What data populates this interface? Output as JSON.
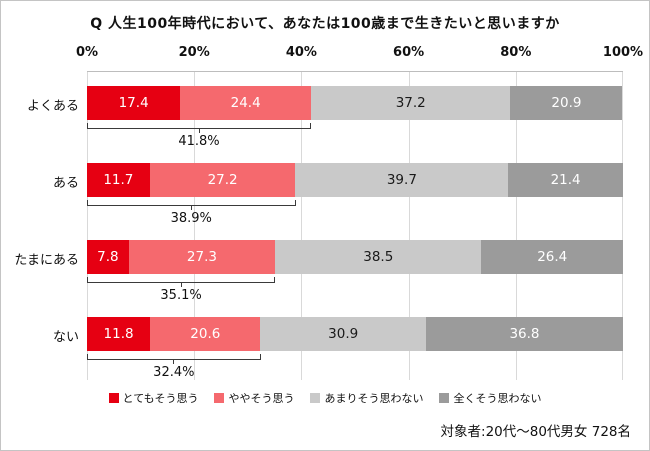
{
  "title": "Q 人生100年時代において、あなたは100歳まで生きたいと思いますか",
  "footer": "対象者:20代〜80代男女 728名",
  "chart_data": {
    "type": "bar",
    "orientation": "horizontal",
    "stacked": true,
    "title": "Q 人生100年時代において、あなたは100歳まで生きたいと思いますか",
    "categories": [
      "よくある",
      "ある",
      "たまにある",
      "ない"
    ],
    "x_ticks": [
      "0%",
      "20%",
      "40%",
      "60%",
      "80%",
      "100%"
    ],
    "xlim": [
      0,
      100
    ],
    "grid": true,
    "legend_position": "bottom",
    "series": [
      {
        "name": "とてもそう思う",
        "color": "#e60012",
        "text_color": "#ffffff",
        "values": [
          17.4,
          11.7,
          7.8,
          11.8
        ]
      },
      {
        "name": "ややそう思う",
        "color": "#f5696e",
        "text_color": "#ffffff",
        "values": [
          24.4,
          27.2,
          27.3,
          20.6
        ]
      },
      {
        "name": "あまりそう思わない",
        "color": "#c9c9c9",
        "text_color": "#1a1a1a",
        "values": [
          37.2,
          39.7,
          38.5,
          30.9
        ]
      },
      {
        "name": "全くそう思わない",
        "color": "#9b9b9b",
        "text_color": "#ffffff",
        "values": [
          20.9,
          21.4,
          26.4,
          36.8
        ]
      }
    ],
    "combined_span": 2,
    "combined_totals": [
      "41.8%",
      "38.9%",
      "35.1%",
      "32.4%"
    ]
  }
}
